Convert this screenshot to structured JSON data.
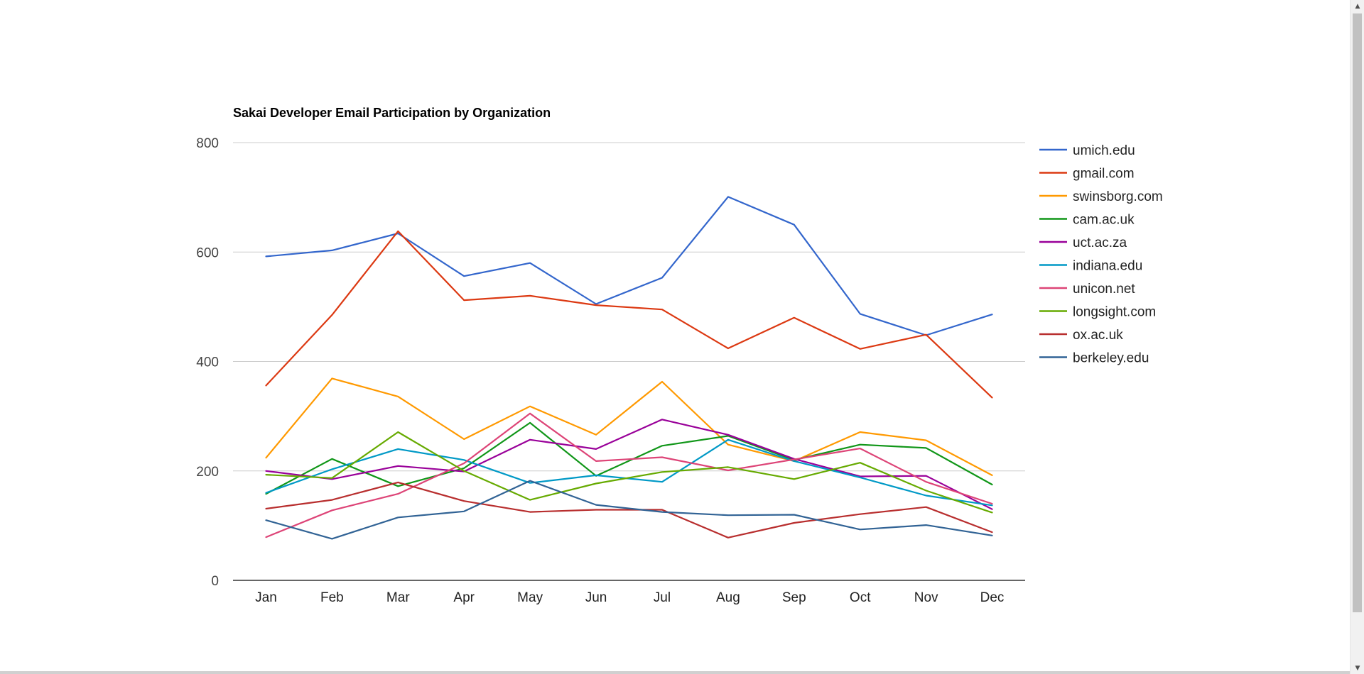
{
  "chart_data": {
    "type": "line",
    "title": "Sakai Developer Email Participation by Organization",
    "xlabel": "",
    "ylabel": "",
    "categories": [
      "Jan",
      "Feb",
      "Mar",
      "Apr",
      "May",
      "Jun",
      "Jul",
      "Aug",
      "Sep",
      "Oct",
      "Nov",
      "Dec"
    ],
    "ylim": [
      0,
      800
    ],
    "yticks": [
      0,
      200,
      400,
      600,
      800
    ],
    "grid": true,
    "legend": "right",
    "series": [
      {
        "name": "umich.edu",
        "color": "#3366cc",
        "values": [
          592,
          603,
          634,
          556,
          580,
          505,
          553,
          701,
          650,
          487,
          448,
          486
        ]
      },
      {
        "name": "gmail.com",
        "color": "#dc3912",
        "values": [
          356,
          485,
          638,
          512,
          520,
          503,
          495,
          424,
          480,
          423,
          449,
          334
        ]
      },
      {
        "name": "swinsborg.com",
        "color": "#ff9900",
        "values": [
          224,
          369,
          336,
          258,
          318,
          266,
          363,
          248,
          218,
          271,
          256,
          192
        ]
      },
      {
        "name": "cam.ac.uk",
        "color": "#109618",
        "values": [
          158,
          222,
          172,
          205,
          288,
          191,
          246,
          264,
          220,
          248,
          242,
          175
        ]
      },
      {
        "name": "uct.ac.za",
        "color": "#990099",
        "values": [
          200,
          185,
          209,
          199,
          257,
          240,
          294,
          266,
          222,
          190,
          191,
          130
        ]
      },
      {
        "name": "indiana.edu",
        "color": "#0099c6",
        "values": [
          160,
          203,
          240,
          220,
          178,
          192,
          180,
          257,
          218,
          188,
          155,
          137
        ]
      },
      {
        "name": "unicon.net",
        "color": "#dd4477",
        "values": [
          79,
          128,
          158,
          214,
          305,
          218,
          225,
          201,
          221,
          241,
          180,
          140
        ]
      },
      {
        "name": "longsight.com",
        "color": "#66aa00",
        "values": [
          193,
          187,
          271,
          200,
          147,
          177,
          198,
          207,
          185,
          215,
          164,
          124
        ]
      },
      {
        "name": "ox.ac.uk",
        "color": "#b82e2e",
        "values": [
          131,
          147,
          179,
          145,
          125,
          129,
          129,
          78,
          105,
          121,
          134,
          88
        ]
      },
      {
        "name": "berkeley.edu",
        "color": "#316395",
        "values": [
          110,
          76,
          115,
          126,
          182,
          138,
          125,
          119,
          120,
          93,
          101,
          82
        ]
      }
    ]
  }
}
